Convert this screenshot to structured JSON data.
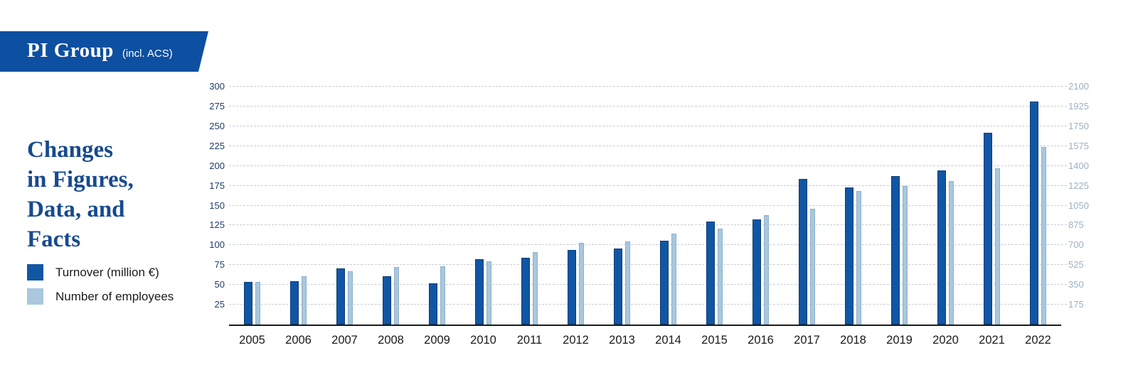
{
  "banner": {
    "title": "PI Group",
    "subtitle": "(incl. ACS)"
  },
  "heading": {
    "lines": [
      "Changes",
      "in Figures,",
      "Data, and",
      "Facts"
    ]
  },
  "legend": {
    "items": [
      {
        "label": "Turnover (million €)",
        "color": "#1156a4"
      },
      {
        "label": "Number of employees",
        "color": "#a9c7de"
      }
    ]
  },
  "colors": {
    "banner_blue": "#0d4fa0",
    "heading_blue": "#174a8f",
    "turnover_bar": "#1156a4",
    "turnover_border": "#0a3c77",
    "employees_bar": "#a9c7de",
    "employees_border": "#8db1cb",
    "left_axis_text": "#1e3c69",
    "right_axis_text": "#9cb0c3",
    "gridline": "#c9cdd2",
    "axis_line": "#1b1b1b"
  },
  "chart_data": {
    "type": "bar",
    "categories": [
      "2005",
      "2006",
      "2007",
      "2008",
      "2009",
      "2010",
      "2011",
      "2012",
      "2013",
      "2014",
      "2015",
      "2016",
      "2017",
      "2018",
      "2019",
      "2020",
      "2021",
      "2022"
    ],
    "series": [
      {
        "name": "Turnover (million €)",
        "axis": "left",
        "color": "#1156a4",
        "values": [
          54,
          55,
          71,
          61,
          52,
          82,
          84,
          94,
          96,
          106,
          130,
          133,
          184,
          173,
          187,
          194,
          242,
          281
        ]
      },
      {
        "name": "Number of employees",
        "axis": "right",
        "color": "#a9c7de",
        "values": [
          378,
          425,
          470,
          510,
          515,
          560,
          637,
          720,
          735,
          805,
          845,
          965,
          1025,
          1180,
          1225,
          1265,
          1380,
          1565
        ]
      }
    ],
    "left_axis": {
      "ticks": [
        25,
        50,
        75,
        100,
        125,
        150,
        175,
        200,
        225,
        250,
        275,
        300
      ],
      "max": 300,
      "min": 0
    },
    "right_axis": {
      "ticks": [
        175,
        350,
        525,
        700,
        875,
        1050,
        1225,
        1400,
        1575,
        1750,
        1925,
        2100
      ],
      "max": 2100,
      "min": 0
    },
    "grid": "horizontal-dashed",
    "legend_position": "left",
    "title": "Changes in Figures, Data, and Facts"
  }
}
